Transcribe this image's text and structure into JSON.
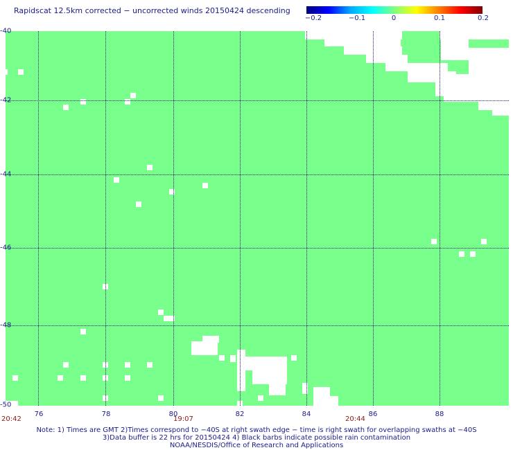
{
  "title": "Rapidscat 12.5km corrected − uncorrected winds 20150424 descending",
  "colorbar": {
    "ticks": [
      "−0.2",
      "−0.1",
      "0",
      "0.1",
      "0.2"
    ],
    "colors": [
      "#000080",
      "#0000ff",
      "#00ffff",
      "#80ff80",
      "#ffff00",
      "#ff8000",
      "#800000"
    ]
  },
  "map": {
    "fill_color": "#78ff8c",
    "lat_labels": [
      "-40",
      "-42",
      "-44",
      "-46",
      "-48",
      "-50"
    ],
    "lon_labels": [
      "76",
      "78",
      "80",
      "82",
      "84",
      "86",
      "88"
    ]
  },
  "times": [
    "20:42",
    "19:07",
    "20:44"
  ],
  "notes": {
    "line1": "Note: 1) Times are GMT 2)Times correspond to −40S at right swath edge − time is right swath for overlapping swaths at −40S",
    "line2": "3)Data buffer is 22 hrs for 20150424 4) Black barbs indicate possible rain contamination",
    "line3": "NOAA/NESDIS/Office of Research and Applications"
  }
}
